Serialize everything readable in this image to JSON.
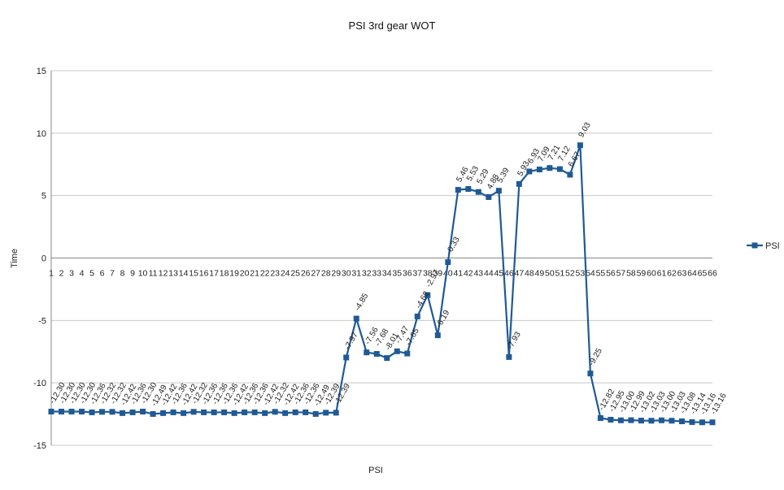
{
  "chart_data": {
    "type": "line",
    "title": "PSI 3rd gear WOT",
    "xlabel": "PSI",
    "ylabel": "Time",
    "ylim": [
      -15,
      15
    ],
    "yticks": [
      15,
      10,
      5,
      0,
      -5,
      -10,
      -15
    ],
    "grid": true,
    "legend_position": "right",
    "colors": {
      "series": "#1f5a96",
      "grid": "#c8c8c8",
      "axis": "#888888"
    },
    "categories": [
      "1",
      "2",
      "3",
      "4",
      "5",
      "6",
      "7",
      "8",
      "9",
      "10",
      "11",
      "12",
      "13",
      "14",
      "15",
      "16",
      "17",
      "18",
      "19",
      "20",
      "21",
      "22",
      "23",
      "24",
      "25",
      "26",
      "27",
      "28",
      "29",
      "30",
      "31",
      "32",
      "33",
      "34",
      "35",
      "36",
      "37",
      "38",
      "39",
      "40",
      "41",
      "42",
      "43",
      "44",
      "45",
      "46",
      "47",
      "48",
      "49",
      "50",
      "51",
      "52",
      "53",
      "54",
      "55",
      "56",
      "57",
      "58",
      "59",
      "60",
      "61",
      "62",
      "63",
      "64",
      "65",
      "66"
    ],
    "series": [
      {
        "name": "PSI",
        "values": [
          -12.3,
          -12.3,
          -12.3,
          -12.3,
          -12.36,
          -12.32,
          -12.32,
          -12.42,
          -12.36,
          -12.3,
          -12.49,
          -12.42,
          -12.36,
          -12.42,
          -12.32,
          -12.36,
          -12.36,
          -12.36,
          -12.42,
          -12.36,
          -12.36,
          -12.42,
          -12.32,
          -12.42,
          -12.36,
          -12.36,
          -12.49,
          -12.39,
          -12.39,
          -7.97,
          -4.85,
          -7.56,
          -7.68,
          -8.01,
          -7.47,
          -7.65,
          -4.68,
          -2.97,
          -6.19,
          -0.33,
          5.46,
          5.53,
          5.29,
          4.88,
          5.39,
          -7.93,
          5.93,
          6.93,
          7.09,
          7.21,
          7.12,
          6.67,
          9.03,
          -9.25,
          -12.82,
          -12.95,
          -13.0,
          -12.99,
          -13.02,
          -13.03,
          -13.0,
          -13.03,
          -13.08,
          -13.14,
          -13.16,
          -13.16
        ],
        "labels": [
          "-12.30",
          "-12.30",
          "-12.30",
          "-12.30",
          "-12.36",
          "-12.32",
          "-12.32",
          "-12.42",
          "-12.36",
          "-12.30",
          "-12.49",
          "-12.42",
          "-12.36",
          "-12.42",
          "-12.32",
          "-12.36",
          "-12.36",
          "-12.36",
          "-12.42",
          "-12.36",
          "-12.36",
          "-12.42",
          "-12.32",
          "-12.42",
          "-12.36",
          "-12.36",
          "-12.49",
          "-12.39",
          "-12.39",
          "-7.97",
          "-4.85",
          "-7.56",
          "-7.68",
          "-8.01",
          "-7.47",
          "-7.65",
          "-4.68",
          "-2.97",
          "-6.19",
          "-0.33",
          "5.46",
          "5.53",
          "5.29",
          "4.88",
          "5.39",
          "-7.93",
          "5.93",
          "6.93",
          "7.09",
          "7.21",
          "7.12",
          "6.67",
          "9.03",
          "-9.25",
          "-12.82",
          "-12.95",
          "-13.00",
          "-12.99",
          "-13.02",
          "-13.03",
          "-13.00",
          "-13.03",
          "-13.08",
          "-13.14",
          "-13.16",
          "-13.16"
        ]
      }
    ]
  }
}
